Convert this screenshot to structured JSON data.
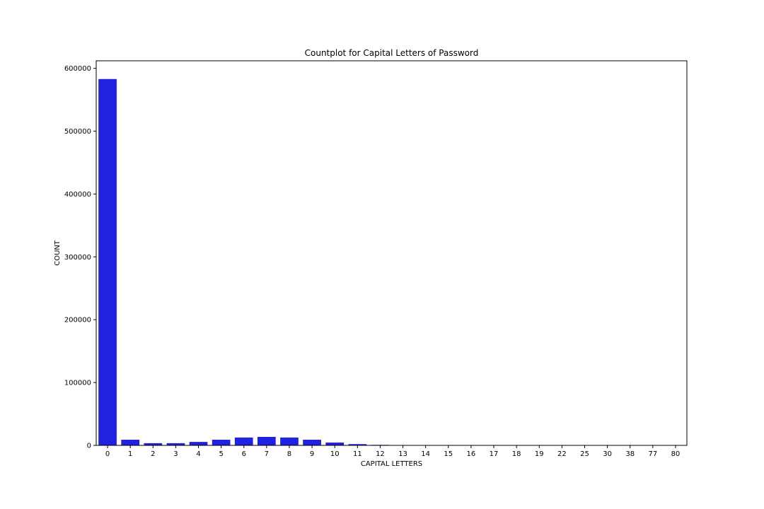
{
  "chart_data": {
    "type": "bar",
    "title": "Countplot for Capital Letters of Password",
    "xlabel": "CAPITAL LETTERS",
    "ylabel": "COUNT",
    "categories": [
      "0",
      "1",
      "2",
      "3",
      "4",
      "5",
      "6",
      "7",
      "8",
      "9",
      "10",
      "11",
      "12",
      "13",
      "14",
      "15",
      "16",
      "17",
      "18",
      "19",
      "22",
      "25",
      "30",
      "38",
      "77",
      "80"
    ],
    "values": [
      583000,
      9000,
      3500,
      3500,
      5500,
      9000,
      12500,
      13500,
      12500,
      9000,
      4500,
      2000,
      800,
      250,
      80,
      30,
      15,
      10,
      5,
      5,
      3,
      2,
      2,
      1,
      1,
      1
    ],
    "yticks": [
      0,
      100000,
      200000,
      300000,
      400000,
      500000,
      600000
    ],
    "ylim": [
      0,
      612000
    ],
    "bar_color": "#2121e0",
    "grid": false,
    "legend": "none"
  }
}
